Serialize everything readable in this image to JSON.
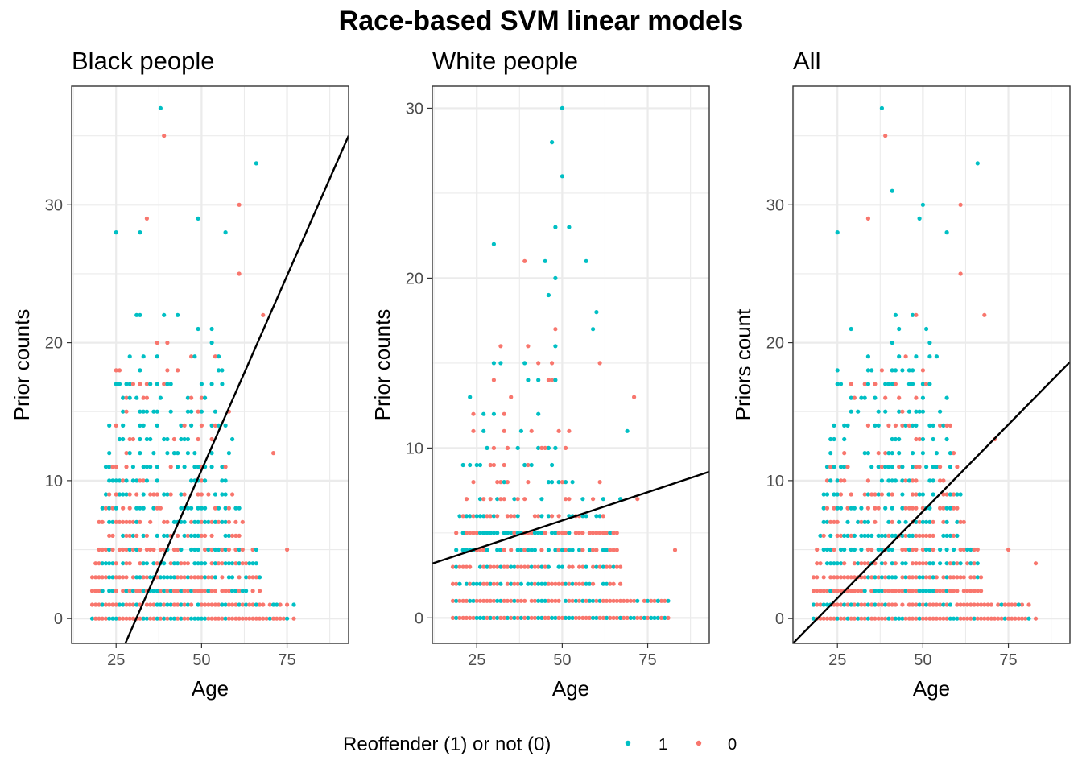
{
  "chart_data": {
    "type": "scatter",
    "title": "Race-based SVM linear models",
    "legend": {
      "title": "Reoffender (1) or not (0)",
      "placement": "bottom",
      "entries": [
        {
          "label": "1",
          "color": "#00BFC4"
        },
        {
          "label": "0",
          "color": "#F8766D"
        }
      ]
    },
    "grid": true,
    "panels": [
      {
        "title": "Black people",
        "xlabel": "Age",
        "ylabel": "Prior counts",
        "xlim": [
          12,
          93
        ],
        "ylim": [
          -1.8,
          38.6
        ],
        "xticks": [
          25,
          50,
          75
        ],
        "yticks": [
          0,
          10,
          20,
          30
        ],
        "max_age": 77,
        "line": [
          [
            27.7,
            -1.8
          ],
          [
            93,
            35
          ]
        ],
        "extra_points": [
          {
            "x": 38,
            "y": 37,
            "label": "1"
          },
          {
            "x": 39,
            "y": 35,
            "label": "0"
          },
          {
            "x": 66,
            "y": 33,
            "label": "1"
          },
          {
            "x": 49,
            "y": 29,
            "label": "1"
          },
          {
            "x": 61,
            "y": 30,
            "label": "0"
          },
          {
            "x": 34,
            "y": 29,
            "label": "0"
          },
          {
            "x": 25,
            "y": 28,
            "label": "1"
          },
          {
            "x": 32,
            "y": 28,
            "label": "1"
          },
          {
            "x": 57,
            "y": 28,
            "label": "1"
          },
          {
            "x": 61,
            "y": 25,
            "label": "0"
          },
          {
            "x": 68,
            "y": 22,
            "label": "0"
          },
          {
            "x": 71,
            "y": 12,
            "label": "0"
          },
          {
            "x": 75,
            "y": 5,
            "label": "0"
          },
          {
            "x": 77,
            "y": 1,
            "label": "1"
          },
          {
            "x": 77,
            "y": 0,
            "label": "0"
          }
        ]
      },
      {
        "title": "White people",
        "xlabel": "Age",
        "ylabel": "Prior counts",
        "xlim": [
          12,
          93
        ],
        "ylim": [
          -1.5,
          31.3
        ],
        "xticks": [
          25,
          50,
          75
        ],
        "yticks": [
          0,
          10,
          20,
          30
        ],
        "max_age": 83,
        "line": [
          [
            12,
            3.2
          ],
          [
            93,
            8.6
          ]
        ],
        "extra_points": [
          {
            "x": 50,
            "y": 30,
            "label": "1"
          },
          {
            "x": 47,
            "y": 28,
            "label": "1"
          },
          {
            "x": 50,
            "y": 26,
            "label": "1"
          },
          {
            "x": 48,
            "y": 23,
            "label": "1"
          },
          {
            "x": 52,
            "y": 23,
            "label": "1"
          },
          {
            "x": 30,
            "y": 22,
            "label": "1"
          },
          {
            "x": 39,
            "y": 21,
            "label": "0"
          },
          {
            "x": 45,
            "y": 21,
            "label": "1"
          },
          {
            "x": 57,
            "y": 21,
            "label": "1"
          },
          {
            "x": 48,
            "y": 20,
            "label": "1"
          },
          {
            "x": 46,
            "y": 19,
            "label": "1"
          },
          {
            "x": 60,
            "y": 18,
            "label": "1"
          },
          {
            "x": 48,
            "y": 17,
            "label": "0"
          },
          {
            "x": 59,
            "y": 17,
            "label": "1"
          },
          {
            "x": 61,
            "y": 15,
            "label": "0"
          },
          {
            "x": 71,
            "y": 13,
            "label": "0"
          },
          {
            "x": 69,
            "y": 11,
            "label": "1"
          },
          {
            "x": 67,
            "y": 7,
            "label": "1"
          },
          {
            "x": 72,
            "y": 7,
            "label": "0"
          },
          {
            "x": 83,
            "y": 4,
            "label": "0"
          },
          {
            "x": 78,
            "y": 1,
            "label": "1"
          }
        ]
      },
      {
        "title": "All",
        "xlabel": "Age",
        "ylabel": "Priors count",
        "xlim": [
          12,
          93
        ],
        "ylim": [
          -1.8,
          38.6
        ],
        "xticks": [
          25,
          50,
          75
        ],
        "yticks": [
          0,
          10,
          20,
          30
        ],
        "max_age": 83,
        "line": [
          [
            12,
            -1.8
          ],
          [
            93,
            18.6
          ]
        ],
        "extra_points": [
          {
            "x": 38,
            "y": 37,
            "label": "1"
          },
          {
            "x": 39,
            "y": 35,
            "label": "0"
          },
          {
            "x": 66,
            "y": 33,
            "label": "1"
          },
          {
            "x": 41,
            "y": 31,
            "label": "1"
          },
          {
            "x": 50,
            "y": 30,
            "label": "1"
          },
          {
            "x": 61,
            "y": 30,
            "label": "0"
          },
          {
            "x": 49,
            "y": 29,
            "label": "1"
          },
          {
            "x": 34,
            "y": 29,
            "label": "0"
          },
          {
            "x": 25,
            "y": 28,
            "label": "1"
          },
          {
            "x": 57,
            "y": 28,
            "label": "1"
          },
          {
            "x": 61,
            "y": 25,
            "label": "0"
          },
          {
            "x": 68,
            "y": 22,
            "label": "0"
          },
          {
            "x": 71,
            "y": 13,
            "label": "0"
          },
          {
            "x": 75,
            "y": 5,
            "label": "0"
          },
          {
            "x": 83,
            "y": 4,
            "label": "0"
          },
          {
            "x": 78,
            "y": 1,
            "label": "1"
          },
          {
            "x": 83,
            "y": 0,
            "label": "0"
          }
        ]
      }
    ]
  }
}
